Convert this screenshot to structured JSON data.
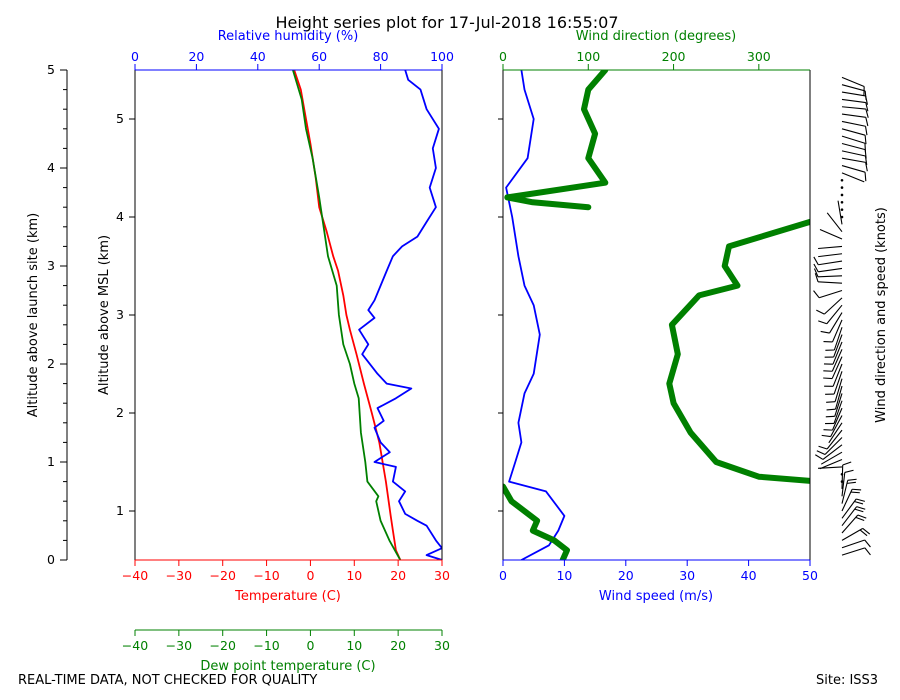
{
  "chart_data": {
    "type": "line",
    "title": "Height series plot for 17-Jul-2018 16:55:07",
    "footer_left": "REAL-TIME DATA, NOT CHECKED FOR QUALITY",
    "footer_right": "Site: ISS3",
    "left_outer_axis": {
      "label": "Altitude above launch site (km)",
      "ticks": [
        "0",
        "1",
        "2",
        "3",
        "4",
        "5"
      ],
      "range": [
        0,
        5.0
      ]
    },
    "left_inner_axis": {
      "label": "Altitude above MSL (km)",
      "ticks": [
        "1",
        "2",
        "3",
        "4",
        "5"
      ],
      "range": [
        0.5,
        5.5
      ]
    },
    "thermo_panel": {
      "temperature_axis": {
        "label": "Temperature (C)",
        "ticks": [
          "−40",
          "−30",
          "−20",
          "−10",
          "0",
          "10",
          "20",
          "30"
        ],
        "range": [
          -40,
          30
        ],
        "color": "#ff0000"
      },
      "dewpoint_axis": {
        "label": "Dew point temperature (C)",
        "ticks": [
          "−40",
          "−30",
          "−20",
          "−10",
          "0",
          "10",
          "20",
          "30"
        ],
        "range": [
          -40,
          30
        ],
        "color": "#008000"
      },
      "rh_axis": {
        "label": "Relative humidity (%)",
        "ticks": [
          "0",
          "20",
          "40",
          "60",
          "80",
          "100"
        ],
        "range": [
          0,
          100
        ],
        "color": "#0000ff"
      },
      "series": [
        {
          "name": "Temperature",
          "color": "#ff0000",
          "x_axis": "temperature",
          "points": [
            [
              20.5,
              0.5
            ],
            [
              19.5,
              0.6
            ],
            [
              18.8,
              0.8
            ],
            [
              18.3,
              0.95
            ],
            [
              17.2,
              1.3
            ],
            [
              15.7,
              1.7
            ],
            [
              14,
              2.0
            ],
            [
              12.2,
              2.3
            ],
            [
              10.5,
              2.6
            ],
            [
              9,
              2.85
            ],
            [
              8.2,
              3.0
            ],
            [
              7.5,
              3.2
            ],
            [
              6.3,
              3.45
            ],
            [
              5.2,
              3.6
            ],
            [
              3.7,
              3.85
            ],
            [
              2,
              4.1
            ],
            [
              1.2,
              4.4
            ],
            [
              0,
              4.75
            ],
            [
              -1,
              5.0
            ],
            [
              -2.2,
              5.3
            ],
            [
              -3.7,
              5.5
            ]
          ]
        },
        {
          "name": "Dew point",
          "color": "#008000",
          "x_axis": "dewpoint",
          "points": [
            [
              20.5,
              0.5
            ],
            [
              18,
              0.7
            ],
            [
              16,
              0.9
            ],
            [
              15,
              1.1
            ],
            [
              15.5,
              1.15
            ],
            [
              13,
              1.3
            ],
            [
              12.5,
              1.5
            ],
            [
              11.5,
              1.8
            ],
            [
              11,
              2.15
            ],
            [
              10,
              2.3
            ],
            [
              9,
              2.5
            ],
            [
              7.5,
              2.7
            ],
            [
              6.5,
              3.0
            ],
            [
              6,
              3.3
            ],
            [
              4,
              3.6
            ],
            [
              3,
              3.9
            ],
            [
              2,
              4.2
            ],
            [
              0.5,
              4.6
            ],
            [
              -1,
              4.9
            ],
            [
              -2,
              5.2
            ],
            [
              -4,
              5.5
            ]
          ]
        },
        {
          "name": "Relative humidity",
          "color": "#0000ff",
          "x_axis": "rh",
          "points": [
            [
              100,
              0.5
            ],
            [
              95,
              0.55
            ],
            [
              100,
              0.62
            ],
            [
              98,
              0.7
            ],
            [
              95,
              0.85
            ],
            [
              92,
              0.9
            ],
            [
              88,
              0.97
            ],
            [
              86,
              1.1
            ],
            [
              88,
              1.2
            ],
            [
              84,
              1.3
            ],
            [
              85,
              1.45
            ],
            [
              78,
              1.5
            ],
            [
              83,
              1.6
            ],
            [
              80,
              1.7
            ],
            [
              78,
              1.85
            ],
            [
              81,
              1.92
            ],
            [
              79,
              2.05
            ],
            [
              85,
              2.15
            ],
            [
              90,
              2.25
            ],
            [
              82,
              2.3
            ],
            [
              79,
              2.4
            ],
            [
              74,
              2.6
            ],
            [
              76,
              2.7
            ],
            [
              73,
              2.85
            ],
            [
              78,
              2.97
            ],
            [
              76,
              3.05
            ],
            [
              78,
              3.15
            ],
            [
              80,
              3.3
            ],
            [
              82,
              3.45
            ],
            [
              84,
              3.6
            ],
            [
              87,
              3.7
            ],
            [
              92,
              3.8
            ],
            [
              95,
              3.95
            ],
            [
              98,
              4.1
            ],
            [
              96,
              4.3
            ],
            [
              98,
              4.5
            ],
            [
              97,
              4.7
            ],
            [
              99,
              4.9
            ],
            [
              95,
              5.1
            ],
            [
              93,
              5.3
            ],
            [
              89,
              5.4
            ],
            [
              88,
              5.5
            ]
          ]
        }
      ]
    },
    "wind_panel": {
      "speed_axis": {
        "label": "Wind speed (m/s)",
        "ticks": [
          "0",
          "10",
          "20",
          "30",
          "40",
          "50"
        ],
        "range": [
          0,
          50
        ],
        "color": "#0000ff"
      },
      "direction_axis": {
        "label": "Wind direction (degrees)",
        "ticks": [
          "0",
          "100",
          "200",
          "300"
        ],
        "range": [
          0,
          360
        ],
        "color": "#008000"
      },
      "barb_axis_label": "Wind direction and speed (knots)",
      "series": [
        {
          "name": "Wind speed",
          "color": "#0000ff",
          "x_axis": "speed",
          "points": [
            [
              3,
              0.5
            ],
            [
              7.5,
              0.65
            ],
            [
              9,
              0.8
            ],
            [
              10,
              0.95
            ],
            [
              7,
              1.2
            ],
            [
              1,
              1.3
            ],
            [
              2,
              1.5
            ],
            [
              3,
              1.7
            ],
            [
              2.5,
              1.9
            ],
            [
              3.5,
              2.2
            ],
            [
              5,
              2.4
            ],
            [
              6,
              2.8
            ],
            [
              5,
              3.1
            ],
            [
              3.5,
              3.3
            ],
            [
              2.5,
              3.6
            ],
            [
              1.5,
              4.0
            ],
            [
              0.5,
              4.3
            ],
            [
              4,
              4.6
            ],
            [
              5,
              5.0
            ],
            [
              3.5,
              5.3
            ],
            [
              3,
              5.5
            ]
          ]
        },
        {
          "name": "Wind direction",
          "color": "#008000",
          "x_axis": "direction",
          "points": [
            [
              70,
              0.5
            ],
            [
              75,
              0.6
            ],
            [
              60,
              0.7
            ],
            [
              35,
              0.8
            ],
            [
              40,
              0.9
            ],
            [
              10,
              1.1
            ],
            [
              0,
              1.25
            ],
            [
              370,
              1.3
            ],
            [
              300,
              1.35
            ],
            [
              250,
              1.5
            ],
            [
              220,
              1.8
            ],
            [
              200,
              2.1
            ],
            [
              195,
              2.3
            ],
            [
              205,
              2.6
            ],
            [
              198,
              2.9
            ],
            [
              230,
              3.2
            ],
            [
              275,
              3.3
            ],
            [
              260,
              3.5
            ],
            [
              265,
              3.7
            ],
            [
              360,
              3.95
            ],
            [
              100,
              4.1
            ],
            [
              35,
              4.15
            ],
            [
              5,
              4.2
            ],
            [
              120,
              4.35
            ],
            [
              100,
              4.6
            ],
            [
              108,
              4.85
            ],
            [
              95,
              5.1
            ],
            [
              100,
              5.3
            ],
            [
              115,
              5.45
            ],
            [
              120,
              5.5
            ]
          ]
        }
      ]
    }
  }
}
